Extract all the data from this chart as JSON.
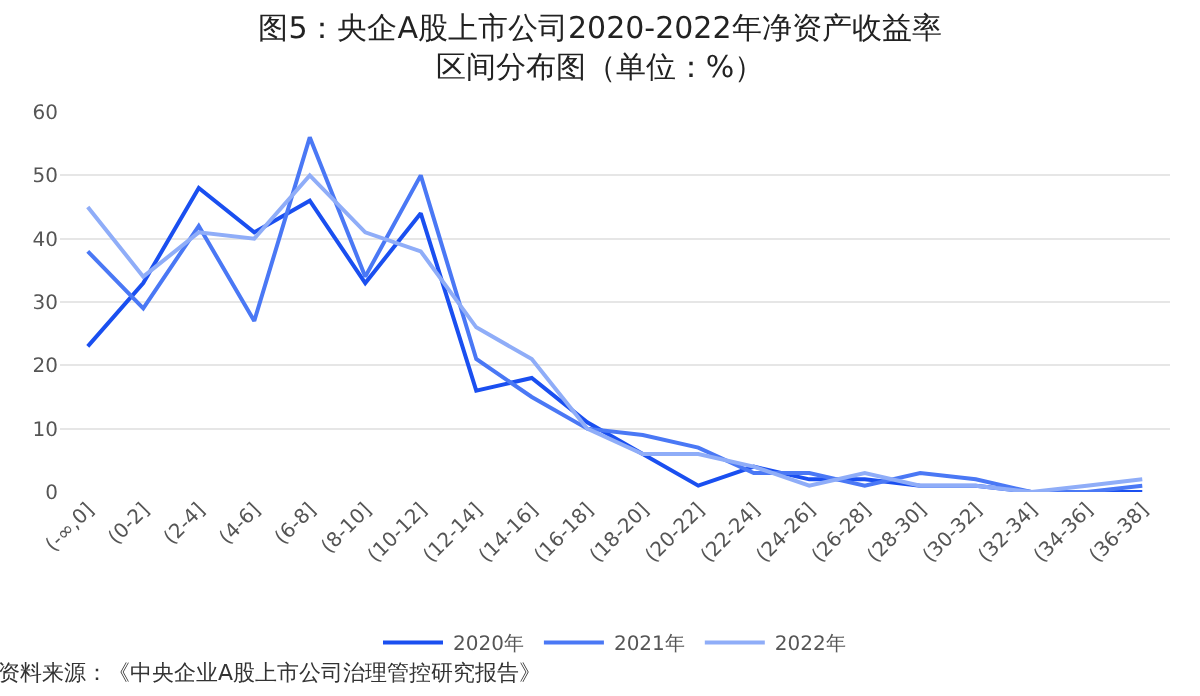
{
  "chart_data": {
    "type": "line",
    "title": "图5：央企A股上市公司2020-2022年净资产收益率区间分布图（单位：%）",
    "categories": [
      "(-∞,0]",
      "(0-2]",
      "(2-4]",
      "(4-6]",
      "(6-8]",
      "(8-10]",
      "(10-12]",
      "(12-14]",
      "(14-16]",
      "(16-18]",
      "(18-20]",
      "(20-22]",
      "(22-24]",
      "(24-26]",
      "(26-28]",
      "(28-30]",
      "(30-32]",
      "(32-34]",
      "(34-36]",
      "(36-38]"
    ],
    "series": [
      {
        "name": "2020年",
        "color": "#1a4ff0",
        "values": [
          23,
          33,
          48,
          41,
          46,
          33,
          44,
          16,
          18,
          11,
          6,
          1,
          4,
          2,
          2,
          1,
          1,
          0,
          0,
          0
        ]
      },
      {
        "name": "2021年",
        "color": "#4a78f5",
        "values": [
          38,
          29,
          42,
          27,
          56,
          34,
          50,
          21,
          15,
          10,
          9,
          7,
          3,
          3,
          1,
          3,
          2,
          0,
          0,
          1
        ]
      },
      {
        "name": "2022年",
        "color": "#8fadf8",
        "values": [
          45,
          34,
          41,
          40,
          50,
          41,
          38,
          26,
          21,
          10,
          6,
          6,
          4,
          1,
          3,
          1,
          1,
          0,
          1,
          2
        ]
      }
    ],
    "ylim": [
      0,
      60
    ],
    "yticks": [
      0,
      10,
      20,
      30,
      40,
      50,
      60
    ],
    "grid": "y",
    "legend": "bottom",
    "marker": "none",
    "line_style": "solid",
    "annotations": [
      "资料来源：《中央企业A股上市公司治理管控研究报告》"
    ]
  }
}
